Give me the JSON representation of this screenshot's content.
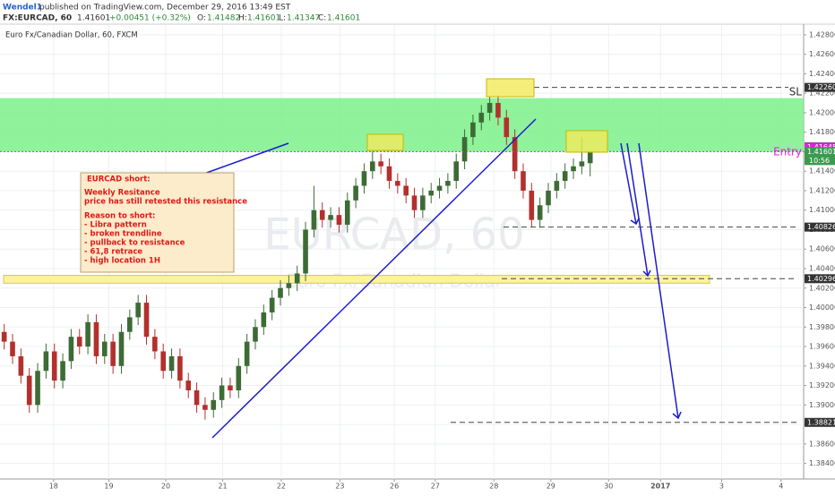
{
  "header": {
    "author": "Wendel1",
    "published": "published on TradingView.com, December 29, 2016 13:49 EST",
    "symbol": "FX:EURCAD, 60",
    "last": "1.41601",
    "change": "+0.00451 (+0.32%)",
    "o_label": "O:",
    "o": "1.41482",
    "h_label": "H:",
    "h": "1.41601",
    "l_label": "L:",
    "l": "1.41347",
    "c_label": "C:",
    "c": "1.41601"
  },
  "chart_data": {
    "type": "candlestick",
    "title": "Euro Fx/Canadian Dollar, 60, FXCM",
    "watermark": "EURCAD, 60",
    "watermark_sub": "Euro Fx/Canadian Dollar",
    "x": [
      0,
      1,
      2,
      3,
      4,
      5,
      6,
      7,
      8,
      9,
      10,
      11,
      12,
      13,
      14,
      15,
      16,
      17,
      18,
      19,
      20,
      21,
      22,
      23,
      24,
      25,
      26,
      27,
      28,
      29,
      30,
      31,
      32,
      33,
      34,
      35,
      36,
      37,
      38,
      39,
      40,
      41,
      42,
      43,
      44,
      45,
      46,
      47,
      48,
      49,
      50,
      51,
      52,
      53,
      54,
      55,
      56,
      57,
      58,
      59,
      60,
      61,
      62,
      63,
      64,
      65,
      66,
      67,
      68,
      69,
      70
    ],
    "open": [
      1.3975,
      1.3965,
      1.395,
      1.393,
      1.39,
      1.3935,
      1.3955,
      1.3925,
      1.3945,
      1.397,
      1.396,
      1.3985,
      1.395,
      1.3965,
      1.394,
      1.3975,
      1.399,
      1.4005,
      1.397,
      1.3955,
      1.3935,
      1.395,
      1.3925,
      1.3915,
      1.39,
      1.3895,
      1.3905,
      1.392,
      1.3915,
      1.394,
      1.3965,
      1.398,
      1.3995,
      1.401,
      1.402,
      1.4025,
      1.4035,
      1.408,
      1.41,
      1.409,
      1.4095,
      1.4085,
      1.411,
      1.4125,
      1.414,
      1.415,
      1.4145,
      1.413,
      1.4125,
      1.4115,
      1.41,
      1.4115,
      1.412,
      1.4125,
      1.413,
      1.415,
      1.4175,
      1.419,
      1.42,
      1.421,
      1.4195,
      1.4175,
      1.414,
      1.412,
      1.409,
      1.4105,
      1.412,
      1.413,
      1.414,
      1.4145,
      1.41482
    ],
    "high": [
      1.3983,
      1.3973,
      1.3958,
      1.3938,
      1.3943,
      1.3963,
      1.3963,
      1.3953,
      1.3978,
      1.3978,
      1.3993,
      1.3993,
      1.3973,
      1.3973,
      1.3983,
      1.3998,
      1.4013,
      1.4013,
      1.3978,
      1.3963,
      1.3958,
      1.3958,
      1.3933,
      1.3923,
      1.3908,
      1.3913,
      1.3928,
      1.3928,
      1.3948,
      1.3973,
      1.3988,
      1.4003,
      1.4018,
      1.4028,
      1.4033,
      1.4043,
      1.4088,
      1.4125,
      1.4108,
      1.4103,
      1.4103,
      1.4118,
      1.4133,
      1.4148,
      1.416,
      1.4158,
      1.4153,
      1.4138,
      1.4133,
      1.4123,
      1.4123,
      1.4128,
      1.4133,
      1.4138,
      1.4158,
      1.4183,
      1.4198,
      1.4208,
      1.4217,
      1.4218,
      1.4203,
      1.4183,
      1.4148,
      1.4128,
      1.4113,
      1.4128,
      1.4138,
      1.4148,
      1.4153,
      1.4175,
      1.41601
    ],
    "low": [
      1.3957,
      1.3942,
      1.3922,
      1.3892,
      1.3892,
      1.3927,
      1.3917,
      1.3917,
      1.3937,
      1.3952,
      1.3952,
      1.3942,
      1.3942,
      1.3932,
      1.3932,
      1.3967,
      1.3982,
      1.3962,
      1.3947,
      1.3927,
      1.3927,
      1.3917,
      1.3907,
      1.3892,
      1.3885,
      1.3887,
      1.3897,
      1.3907,
      1.3907,
      1.3932,
      1.3957,
      1.3972,
      1.3987,
      1.4002,
      1.4012,
      1.4017,
      1.4027,
      1.4072,
      1.4082,
      1.4082,
      1.4077,
      1.4077,
      1.4102,
      1.4117,
      1.4132,
      1.4137,
      1.4122,
      1.4117,
      1.4107,
      1.4092,
      1.4092,
      1.4107,
      1.4112,
      1.4117,
      1.4122,
      1.4142,
      1.4167,
      1.4182,
      1.4192,
      1.4187,
      1.4167,
      1.4132,
      1.4112,
      1.4083,
      1.4082,
      1.4097,
      1.4112,
      1.4122,
      1.4132,
      1.4137,
      1.41347
    ],
    "close": [
      1.3965,
      1.395,
      1.393,
      1.39,
      1.3935,
      1.3955,
      1.3925,
      1.3945,
      1.397,
      1.396,
      1.3985,
      1.395,
      1.3965,
      1.394,
      1.3975,
      1.399,
      1.4005,
      1.397,
      1.3955,
      1.3935,
      1.395,
      1.3925,
      1.3915,
      1.39,
      1.3895,
      1.3905,
      1.392,
      1.3915,
      1.394,
      1.3965,
      1.398,
      1.3995,
      1.401,
      1.402,
      1.4025,
      1.4035,
      1.408,
      1.41,
      1.409,
      1.4095,
      1.4085,
      1.411,
      1.4125,
      1.414,
      1.415,
      1.4145,
      1.413,
      1.4125,
      1.4115,
      1.41,
      1.4115,
      1.412,
      1.4125,
      1.413,
      1.415,
      1.4175,
      1.419,
      1.42,
      1.421,
      1.4195,
      1.4175,
      1.414,
      1.412,
      1.409,
      1.4105,
      1.412,
      1.413,
      1.414,
      1.4145,
      1.415,
      1.41601
    ],
    "up_color": "#3d6b35",
    "down_color": "#b3302d",
    "xlim": [
      -0.5,
      95.5
    ],
    "xticks": [
      {
        "value": 5.9,
        "label": "18"
      },
      {
        "value": 12.5,
        "label": "19"
      },
      {
        "value": 19.3,
        "label": "20"
      },
      {
        "value": 26.1,
        "label": "21"
      },
      {
        "value": 33.1,
        "label": "22"
      },
      {
        "value": 40.1,
        "label": "23"
      },
      {
        "value": 46.6,
        "label": "26"
      },
      {
        "value": 51.5,
        "label": "27"
      },
      {
        "value": 58.5,
        "label": "28"
      },
      {
        "value": 65.3,
        "label": "29"
      },
      {
        "value": 72.2,
        "label": "30"
      },
      {
        "value": 78.4,
        "label": "2017"
      },
      {
        "value": 85.7,
        "label": "3"
      },
      {
        "value": 92.8,
        "label": "4"
      }
    ],
    "ylim": [
      1.3824,
      1.429
    ],
    "yticks": [
      {
        "value": 1.384,
        "label": "1.38400"
      },
      {
        "value": 1.386,
        "label": "1.38600"
      },
      {
        "value": 1.388,
        "label": "1.38800"
      },
      {
        "value": 1.39,
        "label": "1.39000"
      },
      {
        "value": 1.392,
        "label": "1.39200"
      },
      {
        "value": 1.394,
        "label": "1.39400"
      },
      {
        "value": 1.396,
        "label": "1.39600"
      },
      {
        "value": 1.398,
        "label": "1.39800"
      },
      {
        "value": 1.4,
        "label": "1.40000"
      },
      {
        "value": 1.402,
        "label": "1.40200"
      },
      {
        "value": 1.404,
        "label": "1.40400"
      },
      {
        "value": 1.406,
        "label": "1.40600"
      },
      {
        "value": 1.408,
        "label": "1.40800"
      },
      {
        "value": 1.41,
        "label": "1.41000"
      },
      {
        "value": 1.412,
        "label": "1.41200"
      },
      {
        "value": 1.414,
        "label": "1.41400"
      },
      {
        "value": 1.416,
        "label": "1.41600"
      },
      {
        "value": 1.418,
        "label": "1.41800"
      },
      {
        "value": 1.42,
        "label": "1.42000"
      },
      {
        "value": 1.422,
        "label": "1.42200"
      },
      {
        "value": 1.424,
        "label": "1.42400"
      },
      {
        "value": 1.426,
        "label": "1.42600"
      },
      {
        "value": 1.428,
        "label": "1.42800"
      }
    ],
    "grid": true,
    "zone": [
      1.41601,
      1.4215
    ],
    "zone_color": "#7cf08a",
    "band": [
      1.4025,
      1.4033
    ],
    "band_color": "#fbf49c",
    "levels": [
      {
        "value": 1.4226,
        "label": "1.42260",
        "color": "#333333"
      },
      {
        "value": 1.41649,
        "label": "1.41649",
        "color": "#333333"
      },
      {
        "value": 1.41645,
        "label": "1.41645",
        "color": "#e020e0"
      },
      {
        "value": 1.41601,
        "label": "1.41601",
        "color": "#3c9a50"
      },
      {
        "value": 1.40826,
        "label": "1.40826",
        "color": "#333333"
      },
      {
        "value": 1.40296,
        "label": "1.40296",
        "color": "#333333"
      },
      {
        "value": 1.38821,
        "label": "1.38821",
        "color": "#333333"
      }
    ],
    "countdown": "10:56",
    "sl_text": "SL",
    "entry_text": "Entry",
    "note": [
      "EURCAD short:",
      "Weekly Resitance",
      "price has still retested this resistance",
      "Reason to short:",
      "- Libra pattern",
      "- broken trendline",
      "- pullback to resistance",
      "- 61,8 retrace",
      "- high location 1H"
    ]
  }
}
